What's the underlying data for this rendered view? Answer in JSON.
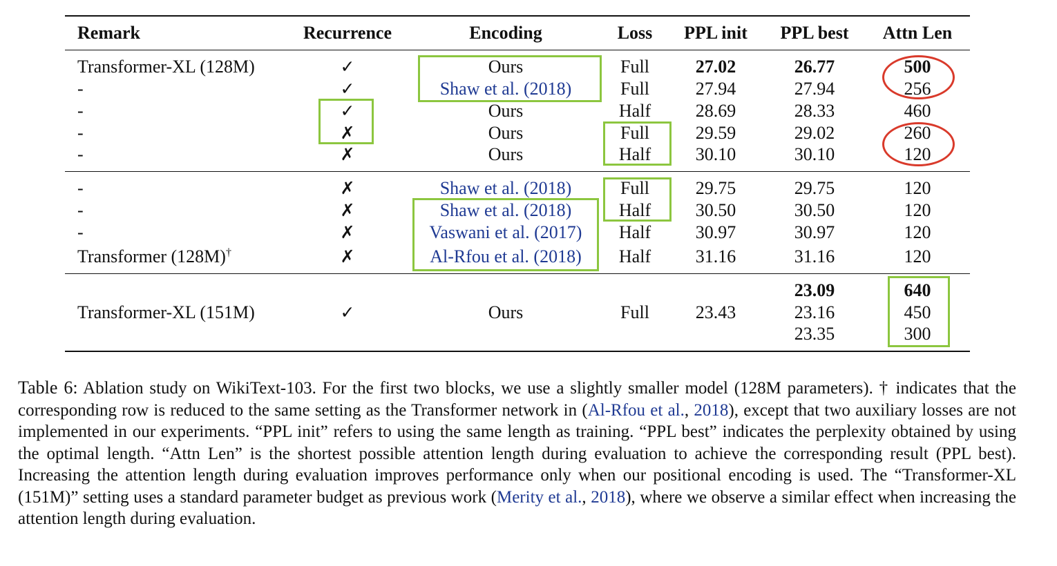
{
  "table": {
    "headers": [
      "Remark",
      "Recurrence",
      "Encoding",
      "Loss",
      "PPL init",
      "PPL best",
      "Attn Len"
    ],
    "blocks": [
      {
        "rows": [
          {
            "remark": "Transformer-XL (128M)",
            "recurrence": "✓",
            "encoding": "Ours",
            "encoding_is_cite": false,
            "loss": "Full",
            "ppl_init": "27.02",
            "ppl_init_bold": true,
            "ppl_best": "26.77",
            "ppl_best_bold": true,
            "attn_len": "500",
            "attn_bold": true
          },
          {
            "remark": "-",
            "recurrence": "✓",
            "encoding": "Shaw et al. (2018)",
            "encoding_is_cite": true,
            "loss": "Full",
            "ppl_init": "27.94",
            "ppl_best": "27.94",
            "attn_len": "256"
          },
          {
            "remark": "-",
            "recurrence": "✓",
            "encoding": "Ours",
            "encoding_is_cite": false,
            "loss": "Half",
            "ppl_init": "28.69",
            "ppl_best": "28.33",
            "attn_len": "460"
          },
          {
            "remark": "-",
            "recurrence": "✗",
            "encoding": "Ours",
            "encoding_is_cite": false,
            "loss": "Full",
            "ppl_init": "29.59",
            "ppl_best": "29.02",
            "attn_len": "260"
          },
          {
            "remark": "-",
            "recurrence": "✗",
            "encoding": "Ours",
            "encoding_is_cite": false,
            "loss": "Half",
            "ppl_init": "30.10",
            "ppl_best": "30.10",
            "attn_len": "120"
          }
        ]
      },
      {
        "rows": [
          {
            "remark": "-",
            "recurrence": "✗",
            "encoding": "Shaw et al. (2018)",
            "encoding_is_cite": true,
            "loss": "Full",
            "ppl_init": "29.75",
            "ppl_best": "29.75",
            "attn_len": "120"
          },
          {
            "remark": "-",
            "recurrence": "✗",
            "encoding": "Shaw et al. (2018)",
            "encoding_is_cite": true,
            "loss": "Half",
            "ppl_init": "30.50",
            "ppl_best": "30.50",
            "attn_len": "120"
          },
          {
            "remark": "-",
            "recurrence": "✗",
            "encoding": "Vaswani et al. (2017)",
            "encoding_is_cite": true,
            "loss": "Half",
            "ppl_init": "30.97",
            "ppl_best": "30.97",
            "attn_len": "120"
          },
          {
            "remark": "Transformer (128M)",
            "remark_sup": "†",
            "recurrence": "✗",
            "encoding": "Al-Rfou et al. (2018)",
            "encoding_is_cite": true,
            "loss": "Half",
            "ppl_init": "31.16",
            "ppl_best": "31.16",
            "attn_len": "120"
          }
        ]
      },
      {
        "rows": [
          {
            "remark": "Transformer-XL (151M)",
            "recurrence": "✓",
            "encoding": "Ours",
            "encoding_is_cite": false,
            "loss": "Full",
            "ppl_init": "23.43",
            "ppl_best_list": [
              {
                "v": "23.09",
                "bold": true
              },
              {
                "v": "23.16"
              },
              {
                "v": "23.35"
              }
            ],
            "attn_len_list": [
              {
                "v": "640",
                "bold": true
              },
              {
                "v": "450"
              },
              {
                "v": "300"
              }
            ]
          }
        ]
      }
    ],
    "annotations": {
      "highlight_color": "#8cc63f",
      "circle_color": "#d93a2b",
      "cite_color": "#1f3a93"
    }
  },
  "caption": {
    "label": "Table 6:",
    "segments": [
      {
        "t": " Ablation study on WikiText-103. For the first two blocks, we use a slightly smaller model (128M parameters). † indicates that the corresponding row is reduced to the same setting as the Transformer network in ("
      },
      {
        "t": "Al-Rfou et al.",
        "cite": true
      },
      {
        "t": ", "
      },
      {
        "t": "2018",
        "cite": true
      },
      {
        "t": "), except that two auxiliary losses are not implemented in our experiments. “PPL init” refers to using the same length as training. “PPL best” indicates the perplexity obtained by using the optimal length. “Attn Len” is the shortest possible attention length during evaluation to achieve the corresponding result (PPL best). Increasing the attention length during evaluation improves performance only when our positional encoding is used. The “Transformer-XL (151M)” setting uses a standard parameter budget as previous work ("
      },
      {
        "t": "Merity et al.",
        "cite": true
      },
      {
        "t": ", "
      },
      {
        "t": "2018",
        "cite": true
      },
      {
        "t": "), where we observe a similar effect when increasing the attention length during evaluation."
      }
    ]
  }
}
